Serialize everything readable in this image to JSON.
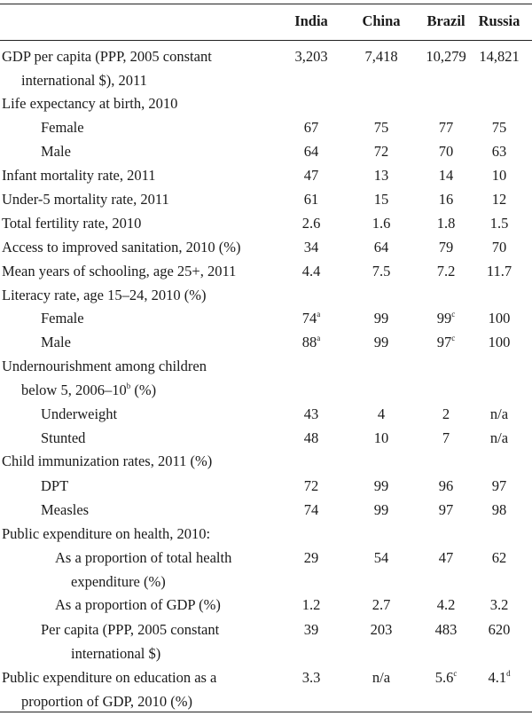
{
  "columns": [
    "India",
    "China",
    "Brazil",
    "Russia"
  ],
  "rows": [
    {
      "label": "GDP per capita (PPP, 2005 constant",
      "indent": 0,
      "values": [
        "3,203",
        "7,418",
        "10,279",
        "14,821"
      ],
      "notes": [
        "",
        "",
        "",
        ""
      ]
    },
    {
      "label": "international $), 2011",
      "indent": 1,
      "values": [
        "",
        "",
        "",
        ""
      ],
      "notes": [
        "",
        "",
        "",
        ""
      ]
    },
    {
      "label": "Life expectancy at birth, 2010",
      "indent": 0,
      "values": [
        "",
        "",
        "",
        ""
      ],
      "notes": [
        "",
        "",
        "",
        ""
      ]
    },
    {
      "label": "Female",
      "indent": 2,
      "values": [
        "67",
        "75",
        "77",
        "75"
      ],
      "notes": [
        "",
        "",
        "",
        ""
      ]
    },
    {
      "label": "Male",
      "indent": 2,
      "values": [
        "64",
        "72",
        "70",
        "63"
      ],
      "notes": [
        "",
        "",
        "",
        ""
      ]
    },
    {
      "label": "Infant mortality rate, 2011",
      "indent": 0,
      "values": [
        "47",
        "13",
        "14",
        "10"
      ],
      "notes": [
        "",
        "",
        "",
        ""
      ]
    },
    {
      "label": "Under-5 mortality rate, 2011",
      "indent": 0,
      "values": [
        "61",
        "15",
        "16",
        "12"
      ],
      "notes": [
        "",
        "",
        "",
        ""
      ]
    },
    {
      "label": "Total fertility rate, 2010",
      "indent": 0,
      "values": [
        "2.6",
        "1.6",
        "1.8",
        "1.5"
      ],
      "notes": [
        "",
        "",
        "",
        ""
      ]
    },
    {
      "label": "Access to improved sanitation, 2010 (%)",
      "indent": 0,
      "values": [
        "34",
        "64",
        "79",
        "70"
      ],
      "notes": [
        "",
        "",
        "",
        ""
      ]
    },
    {
      "label": "Mean years of schooling, age 25+, 2011",
      "indent": 0,
      "values": [
        "4.4",
        "7.5",
        "7.2",
        "11.7"
      ],
      "notes": [
        "",
        "",
        "",
        ""
      ]
    },
    {
      "label": "Literacy rate, age 15–24, 2010 (%)",
      "indent": 0,
      "values": [
        "",
        "",
        "",
        ""
      ],
      "notes": [
        "",
        "",
        "",
        ""
      ]
    },
    {
      "label": "Female",
      "indent": 2,
      "values": [
        "74",
        "99",
        "99",
        "100"
      ],
      "notes": [
        "a",
        "",
        "c",
        ""
      ]
    },
    {
      "label": "Male",
      "indent": 2,
      "values": [
        "88",
        "99",
        "97",
        "100"
      ],
      "notes": [
        "a",
        "",
        "c",
        ""
      ]
    },
    {
      "label": "Undernourishment among children",
      "indent": 0,
      "values": [
        "",
        "",
        "",
        ""
      ],
      "notes": [
        "",
        "",
        "",
        ""
      ]
    },
    {
      "label": "below 5, 2006–10",
      "label_note": "b",
      "label_after": " (%)",
      "indent": 1,
      "values": [
        "",
        "",
        "",
        ""
      ],
      "notes": [
        "",
        "",
        "",
        ""
      ]
    },
    {
      "label": "Underweight",
      "indent": 2,
      "values": [
        "43",
        "4",
        "2",
        "n/a"
      ],
      "notes": [
        "",
        "",
        "",
        ""
      ]
    },
    {
      "label": "Stunted",
      "indent": 2,
      "values": [
        "48",
        "10",
        "7",
        "n/a"
      ],
      "notes": [
        "",
        "",
        "",
        ""
      ]
    },
    {
      "label": "Child immunization rates, 2011 (%)",
      "indent": 0,
      "values": [
        "",
        "",
        "",
        ""
      ],
      "notes": [
        "",
        "",
        "",
        ""
      ]
    },
    {
      "label": "DPT",
      "indent": 2,
      "values": [
        "72",
        "99",
        "96",
        "97"
      ],
      "notes": [
        "",
        "",
        "",
        ""
      ]
    },
    {
      "label": "Measles",
      "indent": 2,
      "values": [
        "74",
        "99",
        "97",
        "98"
      ],
      "notes": [
        "",
        "",
        "",
        ""
      ]
    },
    {
      "label": "Public expenditure on health, 2010:",
      "indent": 0,
      "values": [
        "",
        "",
        "",
        ""
      ],
      "notes": [
        "",
        "",
        "",
        ""
      ]
    },
    {
      "label": "As a proportion of total health",
      "indent": 3,
      "values": [
        "29",
        "54",
        "47",
        "62"
      ],
      "notes": [
        "",
        "",
        "",
        ""
      ]
    },
    {
      "label": "expenditure (%)",
      "indent": 4,
      "values": [
        "",
        "",
        "",
        ""
      ],
      "notes": [
        "",
        "",
        "",
        ""
      ]
    },
    {
      "label": "As a proportion of GDP (%)",
      "indent": 3,
      "values": [
        "1.2",
        "2.7",
        "4.2",
        "3.2"
      ],
      "notes": [
        "",
        "",
        "",
        ""
      ]
    },
    {
      "label": "Per capita (PPP, 2005 constant",
      "indent": 2,
      "values": [
        "39",
        "203",
        "483",
        "620"
      ],
      "notes": [
        "",
        "",
        "",
        ""
      ]
    },
    {
      "label": "international $)",
      "indent": 4,
      "values": [
        "",
        "",
        "",
        ""
      ],
      "notes": [
        "",
        "",
        "",
        ""
      ]
    },
    {
      "label": "Public expenditure on education as a",
      "indent": 0,
      "values": [
        "3.3",
        "n/a",
        "5.6",
        "4.1"
      ],
      "notes": [
        "",
        "",
        "c",
        "d"
      ]
    },
    {
      "label": "proportion of GDP, 2010 (%)",
      "indent": 1,
      "values": [
        "",
        "",
        "",
        ""
      ],
      "notes": [
        "",
        "",
        "",
        ""
      ]
    }
  ]
}
